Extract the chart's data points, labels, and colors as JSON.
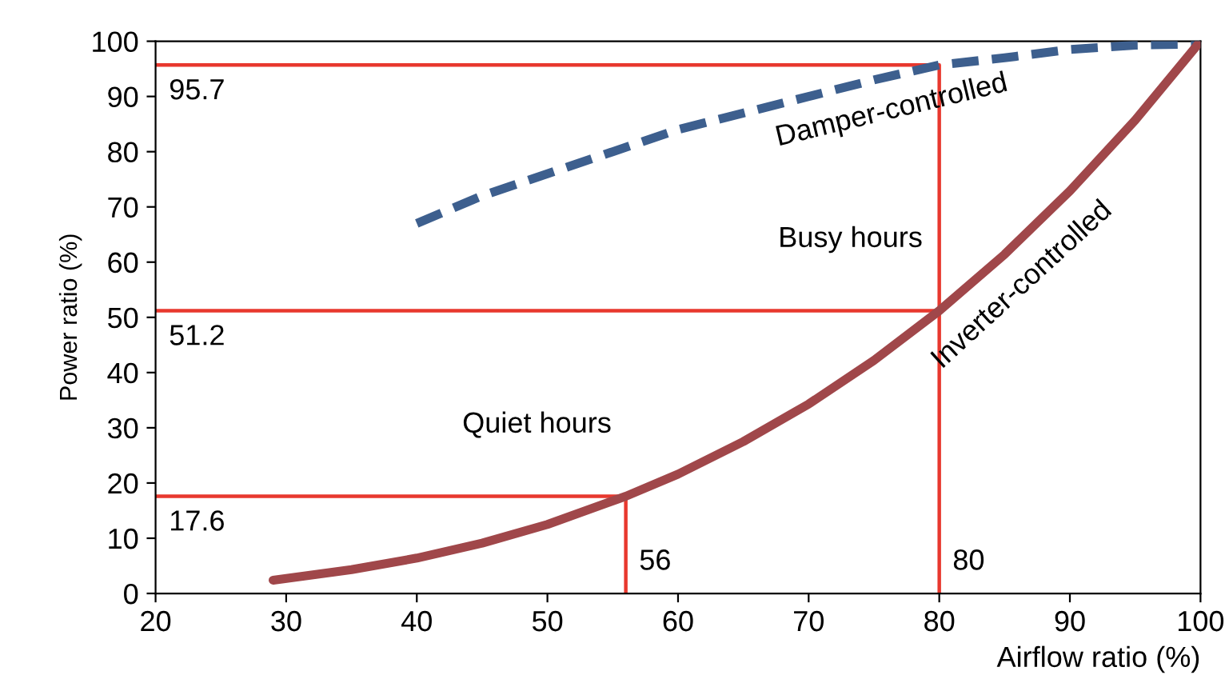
{
  "chart_data": {
    "type": "line",
    "xlabel": "Airflow ratio (%)",
    "ylabel": "Power ratio (%)",
    "xlim": [
      20,
      100
    ],
    "xticks": [
      20,
      30,
      40,
      50,
      60,
      70,
      80,
      90,
      100
    ],
    "ylim": [
      0,
      100
    ],
    "yticks": [
      0,
      10,
      20,
      30,
      40,
      50,
      60,
      70,
      80,
      90,
      100
    ],
    "grid": false,
    "legend": false,
    "series": [
      {
        "name": "Damper-controlled",
        "color": "#3d5f8e",
        "line_style": "dashed",
        "x": [
          40,
          45,
          50,
          55,
          60,
          65,
          70,
          75,
          80,
          85,
          90,
          95,
          100
        ],
        "values": [
          67,
          72,
          76,
          80,
          84,
          87,
          90,
          93,
          95.7,
          97,
          98.5,
          99.3,
          99.5
        ]
      },
      {
        "name": "Inverter-controlled",
        "color": "#a0474a",
        "line_style": "solid",
        "x": [
          29,
          35,
          40,
          45,
          50,
          56,
          60,
          65,
          70,
          75,
          80,
          85,
          90,
          95,
          100
        ],
        "values": [
          2.4,
          4.3,
          6.4,
          9.1,
          12.5,
          17.6,
          21.6,
          27.5,
          34.3,
          42.2,
          51.2,
          61.4,
          72.9,
          85.7,
          100
        ]
      },
      {
        "color": "#e8382e",
        "line_style": "solid",
        "x": [
          20,
          80,
          80
        ],
        "values": [
          95.7,
          95.7,
          0
        ]
      },
      {
        "color": "#e8382e",
        "line_style": "solid",
        "x": [
          20,
          80
        ],
        "values": [
          51.2,
          51.2
        ]
      },
      {
        "color": "#e8382e",
        "line_style": "solid",
        "x": [
          20,
          56,
          56
        ],
        "values": [
          17.6,
          17.6,
          0
        ]
      }
    ],
    "annotations": [
      {
        "text": "95.7",
        "x": 20,
        "y": 95.7
      },
      {
        "text": "51.2",
        "x": 20,
        "y": 51.2
      },
      {
        "text": "17.6",
        "x": 20,
        "y": 17.6
      },
      {
        "text": "56",
        "x": 56,
        "y": 0
      },
      {
        "text": "80",
        "x": 80,
        "y": 0
      },
      {
        "text": "Quiet hours",
        "x": 56,
        "y": 17.6
      },
      {
        "text": "Busy hours",
        "x": 80,
        "y": 51.2
      }
    ]
  }
}
